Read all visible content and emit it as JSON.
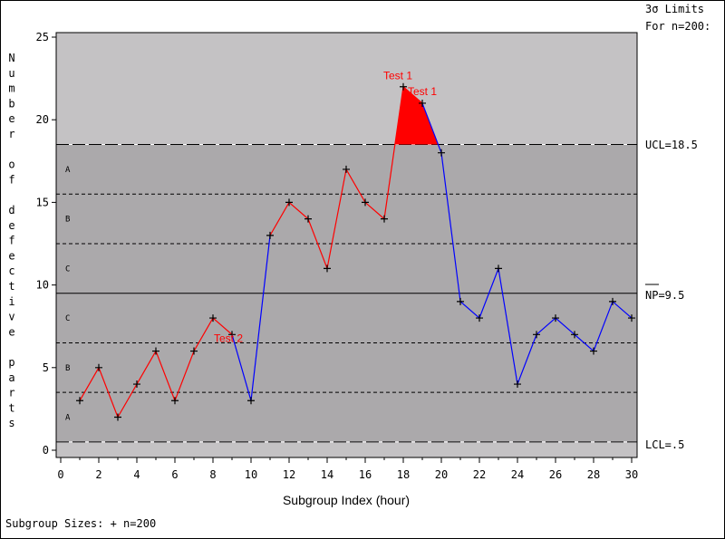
{
  "chart_data": {
    "type": "line",
    "title": "",
    "xlabel": "Subgroup Index (hour)",
    "ylabel": "Number of defective parts",
    "xlim": [
      0,
      30
    ],
    "ylim": [
      0,
      25
    ],
    "x_ticks": [
      0,
      2,
      4,
      6,
      8,
      10,
      12,
      14,
      16,
      18,
      20,
      22,
      24,
      26,
      28,
      30
    ],
    "y_ticks": [
      0,
      5,
      10,
      15,
      20,
      25
    ],
    "x": [
      1,
      2,
      3,
      4,
      5,
      6,
      7,
      8,
      9,
      10,
      11,
      12,
      13,
      14,
      15,
      16,
      17,
      18,
      19,
      20,
      21,
      22,
      23,
      24,
      25,
      26,
      27,
      28,
      29,
      30
    ],
    "values": [
      3,
      5,
      2,
      4,
      6,
      3,
      6,
      8,
      7,
      3,
      13,
      15,
      14,
      11,
      17,
      15,
      14,
      22,
      21,
      18,
      9,
      8,
      11,
      4,
      7,
      8,
      7,
      6,
      9,
      8
    ],
    "ucl": 18.5,
    "center": 9.5,
    "lcl": 0.5,
    "zone_lines": [
      3.5,
      6.5,
      12.5,
      15.5
    ],
    "segments": [
      {
        "from": 1,
        "to": 9,
        "color": "#ff0000"
      },
      {
        "from": 9,
        "to": 10,
        "color": "#0000ff"
      },
      {
        "from": 10,
        "to": 11,
        "color": "#0000ff"
      },
      {
        "from": 11,
        "to": 18,
        "color": "#ff0000"
      },
      {
        "from": 18,
        "to": 19,
        "color": "#ff0000"
      },
      {
        "from": 19,
        "to": 20,
        "color": "#0000ff"
      },
      {
        "from": 20,
        "to": 30,
        "color": "#0000ff"
      }
    ],
    "annotations": [
      {
        "text": "Test 1",
        "x": 18,
        "y": 22
      },
      {
        "text": "Test 1",
        "x": 19,
        "y": 21
      },
      {
        "text": "Test 2",
        "x": 9,
        "y": 7
      }
    ],
    "zone_labels_upper": [
      "A",
      "B",
      "C"
    ],
    "zone_labels_lower": [
      "C",
      "B",
      "A"
    ]
  },
  "limits_header_line1": "3σ Limits",
  "limits_header_line2": "For n=200:",
  "ucl_label": "UCL=18.5",
  "center_label": "NP=9.5",
  "lcl_label": "LCL=.5",
  "footer": "Subgroup Sizes:  + n=200",
  "colors": {
    "outside": "#c4c2c4",
    "inside": "#aba9ab",
    "signal": "#ff0000",
    "normal": "#0000ff"
  }
}
